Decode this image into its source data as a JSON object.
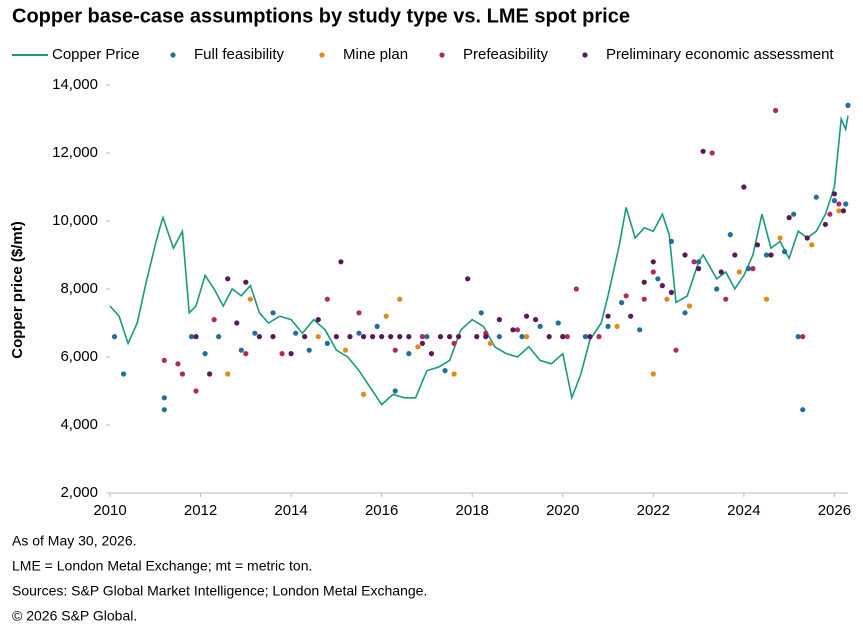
{
  "chart_data": {
    "type": "line",
    "title": "Copper base-case assumptions by study type vs. LME spot price",
    "y_label": "Copper price ($/mt)",
    "notes": [
      "As of May 30, 2026.",
      "LME = London Metal Exchange; mt = metric ton.",
      "Sources: S&P Global Market Intelligence; London Metal Exchange.",
      "© 2026 S&P Global."
    ],
    "xlim": [
      2010,
      2026.3
    ],
    "xticks": [
      2010,
      2012,
      2014,
      2016,
      2018,
      2020,
      2022,
      2024,
      2026
    ],
    "ylim": [
      2000,
      14000
    ],
    "yticks": [
      {
        "value": 2000,
        "label": "2,000"
      },
      {
        "value": 4000,
        "label": "4,000"
      },
      {
        "value": 6000,
        "label": "6,000"
      },
      {
        "value": 8000,
        "label": "8,000"
      },
      {
        "value": 10000,
        "label": "10,000"
      },
      {
        "value": 12000,
        "label": "12,000"
      },
      {
        "value": 14000,
        "label": "14,000"
      }
    ],
    "grid": false,
    "series": [
      {
        "name": "Copper Price",
        "type": "line",
        "color": "#1a9a7c",
        "x": [
          2010.0,
          2010.2,
          2010.4,
          2010.6,
          2010.8,
          2011.0,
          2011.1,
          2011.17,
          2011.4,
          2011.6,
          2011.75,
          2011.9,
          2012.1,
          2012.3,
          2012.5,
          2012.7,
          2012.9,
          2013.1,
          2013.3,
          2013.5,
          2013.75,
          2014.0,
          2014.25,
          2014.5,
          2014.75,
          2015.0,
          2015.25,
          2015.5,
          2015.75,
          2016.0,
          2016.25,
          2016.5,
          2016.75,
          2017.0,
          2017.25,
          2017.5,
          2017.75,
          2018.0,
          2018.25,
          2018.5,
          2018.75,
          2019.0,
          2019.25,
          2019.5,
          2019.75,
          2020.0,
          2020.2,
          2020.4,
          2020.6,
          2020.85,
          2021.0,
          2021.25,
          2021.4,
          2021.6,
          2021.8,
          2022.0,
          2022.2,
          2022.35,
          2022.5,
          2022.75,
          2023.0,
          2023.1,
          2023.4,
          2023.6,
          2023.8,
          2024.0,
          2024.2,
          2024.4,
          2024.6,
          2024.8,
          2025.0,
          2025.2,
          2025.4,
          2025.6,
          2025.8,
          2026.0,
          2026.15,
          2026.25,
          2026.3
        ],
        "values": [
          7500,
          7200,
          6400,
          7000,
          8200,
          9300,
          9800,
          10100,
          9200,
          9700,
          7300,
          7500,
          8400,
          8000,
          7500,
          8000,
          7800,
          8100,
          7300,
          7000,
          7200,
          7100,
          6700,
          7100,
          6800,
          6200,
          6000,
          5600,
          5100,
          4600,
          4900,
          4800,
          4800,
          5600,
          5700,
          5900,
          6800,
          7100,
          6900,
          6300,
          6100,
          6000,
          6300,
          5900,
          5800,
          6100,
          4800,
          5500,
          6500,
          7000,
          7800,
          9300,
          10400,
          9500,
          9800,
          9700,
          10200,
          9600,
          7600,
          7800,
          8800,
          9000,
          8300,
          8500,
          8000,
          8400,
          9000,
          10200,
          9200,
          9400,
          8900,
          9700,
          9500,
          9700,
          10200,
          11000,
          13000,
          12700,
          13100
        ]
      },
      {
        "name": "Full feasibility",
        "type": "scatter",
        "color": "#1f6e9c",
        "x": [
          2010.1,
          2010.3,
          2011.2,
          2011.2,
          2011.8,
          2012.1,
          2012.4,
          2012.9,
          2013.2,
          2013.6,
          2014.1,
          2014.4,
          2014.8,
          2015.5,
          2015.9,
          2016.3,
          2016.6,
          2017.0,
          2017.4,
          2018.2,
          2018.6,
          2019.1,
          2019.5,
          2019.9,
          2020.5,
          2021.0,
          2021.3,
          2021.7,
          2022.1,
          2022.4,
          2022.7,
          2023.0,
          2023.4,
          2023.7,
          2024.1,
          2024.5,
          2024.9,
          2025.1,
          2025.3,
          2025.2,
          2025.6,
          2026.0,
          2026.3,
          2026.25
        ],
        "values": [
          6600,
          5500,
          4800,
          4450,
          6600,
          6100,
          6600,
          6200,
          6700,
          7300,
          6700,
          6200,
          6400,
          6700,
          6900,
          5000,
          6100,
          6600,
          5600,
          7300,
          6600,
          6600,
          6900,
          7000,
          6600,
          6900,
          7600,
          6800,
          8300,
          9400,
          7300,
          8800,
          8000,
          9600,
          8600,
          9000,
          9100,
          10200,
          4450,
          6600,
          10700,
          10600,
          13400,
          10500
        ]
      },
      {
        "name": "Mine plan",
        "type": "scatter",
        "color": "#e08a17",
        "x": [
          2012.6,
          2013.1,
          2014.6,
          2015.2,
          2015.6,
          2016.1,
          2016.4,
          2016.8,
          2017.6,
          2018.4,
          2019.2,
          2020.0,
          2021.2,
          2022.0,
          2022.3,
          2022.8,
          2023.9,
          2024.5,
          2024.8,
          2025.5,
          2026.1
        ],
        "values": [
          5500,
          7700,
          6600,
          6200,
          4900,
          7200,
          7700,
          6300,
          5500,
          6400,
          6600,
          6600,
          6900,
          5500,
          7700,
          7500,
          8500,
          7700,
          9500,
          9300,
          10300
        ]
      },
      {
        "name": "Prefeasibility",
        "type": "scatter",
        "color": "#b3285e",
        "x": [
          2011.2,
          2011.5,
          2011.6,
          2011.9,
          2012.3,
          2013.0,
          2013.8,
          2014.8,
          2015.5,
          2016.3,
          2016.9,
          2017.6,
          2018.3,
          2019.0,
          2020.1,
          2020.3,
          2020.8,
          2021.4,
          2021.8,
          2022.0,
          2022.5,
          2022.9,
          2023.3,
          2023.6,
          2024.2,
          2024.7,
          2025.3,
          2025.9,
          2026.1
        ],
        "values": [
          5900,
          5800,
          5500,
          5000,
          7100,
          6100,
          6100,
          7700,
          7300,
          6200,
          6600,
          6400,
          6700,
          6800,
          6600,
          8000,
          6600,
          7800,
          7700,
          8500,
          6200,
          8800,
          12000,
          7700,
          8600,
          13250,
          6600,
          10200,
          10500
        ]
      },
      {
        "name": "Preliminary economic assessment",
        "type": "scatter",
        "color": "#561a57",
        "x": [
          2011.9,
          2012.2,
          2012.6,
          2012.8,
          2013.0,
          2013.3,
          2013.6,
          2014.0,
          2014.3,
          2014.6,
          2015.0,
          2015.1,
          2015.3,
          2015.6,
          2015.8,
          2016.0,
          2016.2,
          2016.4,
          2016.6,
          2016.9,
          2017.1,
          2017.3,
          2017.5,
          2017.7,
          2017.9,
          2018.1,
          2018.3,
          2018.6,
          2018.9,
          2019.2,
          2019.4,
          2019.7,
          2020.0,
          2020.6,
          2021.0,
          2021.5,
          2021.8,
          2022.0,
          2022.2,
          2022.4,
          2022.7,
          2023.0,
          2023.1,
          2023.5,
          2023.8,
          2024.0,
          2024.3,
          2024.6,
          2025.0,
          2025.4,
          2025.8,
          2026.0,
          2026.2
        ],
        "values": [
          6600,
          5500,
          8300,
          7000,
          8200,
          6600,
          6600,
          6100,
          6600,
          7100,
          6600,
          8800,
          6600,
          6600,
          6600,
          6600,
          6600,
          6600,
          6600,
          6400,
          6100,
          6600,
          6600,
          6600,
          8300,
          6600,
          6600,
          7100,
          6800,
          7200,
          7100,
          6600,
          6600,
          6600,
          7200,
          7200,
          8200,
          8800,
          8100,
          7900,
          9000,
          8600,
          12050,
          8500,
          9000,
          11000,
          9300,
          9000,
          10100,
          9500,
          9900,
          10800,
          10300
        ]
      }
    ]
  }
}
